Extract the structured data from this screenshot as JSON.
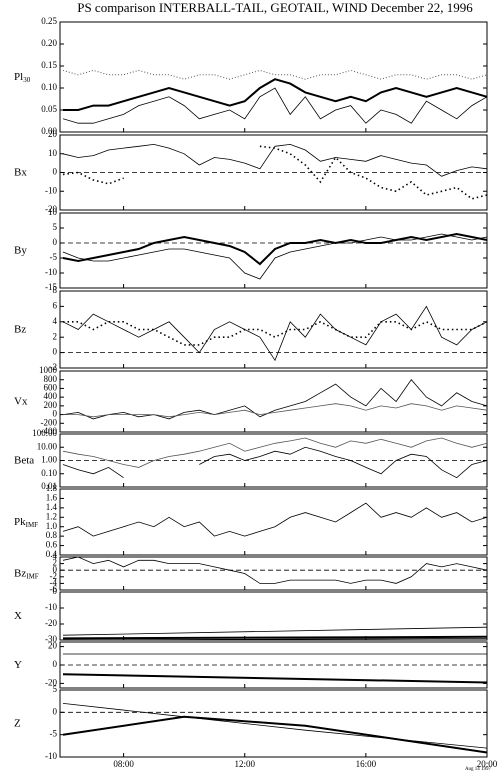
{
  "chart_data": [
    {
      "type": "line",
      "title": "PS comparison INTERBALL-TAIL, GEOTAIL, WIND December 22, 1996",
      "ylabel": "Pl",
      "ylabel_sub": "30",
      "ylim": [
        0,
        0.25
      ],
      "yticks": [
        {
          "value": 0,
          "label": "0.00"
        },
        0.05,
        {
          "value": 0.1,
          "label": "0.10"
        },
        0.15,
        {
          "value": 0.2,
          "label": "0.20"
        },
        0.25
      ],
      "x": [
        6,
        6.5,
        7,
        7.5,
        8,
        8.5,
        9,
        9.5,
        10,
        10.5,
        11,
        11.5,
        12,
        12.5,
        13,
        13.5,
        14,
        14.5,
        15,
        15.5,
        16,
        16.5,
        17,
        17.5,
        18,
        18.5,
        19,
        19.5,
        20
      ],
      "series": [
        {
          "color": "#555555",
          "style": "dotted",
          "values": [
            0.14,
            0.13,
            0.14,
            0.13,
            0.13,
            0.14,
            0.13,
            0.13,
            0.12,
            0.13,
            0.13,
            0.12,
            0.13,
            0.14,
            0.13,
            0.13,
            0.12,
            0.13,
            0.13,
            0.14,
            0.13,
            0.12,
            0.13,
            0.13,
            0.12,
            0.13,
            0.13,
            0.12,
            0.13
          ]
        },
        {
          "color": "#000000",
          "style": "thick",
          "values": [
            0.05,
            0.05,
            0.06,
            0.06,
            0.07,
            0.08,
            0.09,
            0.1,
            0.09,
            0.08,
            0.07,
            0.06,
            0.07,
            0.1,
            0.12,
            0.11,
            0.09,
            0.08,
            0.07,
            0.08,
            0.07,
            0.09,
            0.1,
            0.09,
            0.08,
            0.09,
            0.1,
            0.09,
            0.08
          ]
        },
        {
          "color": "#000000",
          "style": "solid",
          "values": [
            0.03,
            0.02,
            0.02,
            0.03,
            0.04,
            0.06,
            0.07,
            0.08,
            0.06,
            0.03,
            0.04,
            0.05,
            0.03,
            0.08,
            0.1,
            0.04,
            0.08,
            0.03,
            0.05,
            0.06,
            0.02,
            0.05,
            0.04,
            0.02,
            0.07,
            0.05,
            0.03,
            0.06,
            0.08
          ]
        }
      ]
    },
    {
      "type": "line",
      "ylabel": "Bx",
      "ylim": [
        -20,
        20
      ],
      "yticks": [
        -20,
        -10,
        0,
        10,
        20
      ],
      "reference_line": 0,
      "x": [
        6,
        6.5,
        7,
        7.5,
        8,
        8.5,
        9,
        9.5,
        10,
        10.5,
        11,
        11.5,
        12,
        12.5,
        13,
        13.5,
        14,
        14.5,
        15,
        15.5,
        16,
        16.5,
        17,
        17.5,
        18,
        18.5,
        19,
        19.5,
        20
      ],
      "series": [
        {
          "color": "#000000",
          "style": "solid",
          "values": [
            10,
            8,
            9,
            12,
            13,
            14,
            15,
            13,
            10,
            4,
            8,
            7,
            5,
            2,
            14,
            15,
            12,
            6,
            8,
            7,
            6,
            9,
            7,
            5,
            4,
            -2,
            1,
            3,
            2
          ]
        },
        {
          "color": "#000000",
          "style": "dots",
          "values": [
            -1,
            0,
            -4,
            -6,
            -3,
            null,
            null,
            null,
            null,
            null,
            null,
            null,
            null,
            14,
            13,
            10,
            4,
            -5,
            8,
            0,
            -3,
            -8,
            -10,
            -5,
            -12,
            -10,
            -8,
            -14,
            -12
          ]
        }
      ]
    },
    {
      "type": "line",
      "ylabel": "By",
      "ylim": [
        -15,
        10
      ],
      "yticks": [
        -15,
        -10,
        -5,
        0,
        5,
        10
      ],
      "reference_line": 0,
      "x": [
        6,
        6.5,
        7,
        7.5,
        8,
        8.5,
        9,
        9.5,
        10,
        10.5,
        11,
        11.5,
        12,
        12.5,
        13,
        13.5,
        14,
        14.5,
        15,
        15.5,
        16,
        16.5,
        17,
        17.5,
        18,
        18.5,
        19,
        19.5,
        20
      ],
      "series": [
        {
          "color": "#000000",
          "style": "thick",
          "values": [
            -5,
            -6,
            -5,
            -4,
            -3,
            -2,
            0,
            1,
            2,
            1,
            0,
            -1,
            -3,
            -7,
            -2,
            0,
            0,
            1,
            0,
            1,
            0,
            0,
            1,
            2,
            1,
            2,
            3,
            2,
            1
          ]
        },
        {
          "color": "#000000",
          "style": "solid",
          "values": [
            -3,
            -5,
            -6,
            -6,
            -5,
            -4,
            -3,
            -2,
            -2,
            -3,
            -4,
            -5,
            -10,
            -12,
            -5,
            -3,
            -2,
            -1,
            0,
            0,
            1,
            2,
            1,
            1,
            2,
            3,
            2,
            1,
            2
          ]
        }
      ]
    },
    {
      "type": "line",
      "ylabel": "Bz",
      "ylim": [
        -2,
        8
      ],
      "yticks": [
        -2,
        0,
        2,
        4,
        6,
        8
      ],
      "reference_line": 0,
      "x": [
        6,
        6.5,
        7,
        7.5,
        8,
        8.5,
        9,
        9.5,
        10,
        10.5,
        11,
        11.5,
        12,
        12.5,
        13,
        13.5,
        14,
        14.5,
        15,
        15.5,
        16,
        16.5,
        17,
        17.5,
        18,
        18.5,
        19,
        19.5,
        20
      ],
      "series": [
        {
          "color": "#000000",
          "style": "solid",
          "values": [
            4,
            3,
            5,
            4,
            3,
            2,
            3,
            4,
            2,
            0,
            3,
            4,
            3,
            2,
            -1,
            4,
            2,
            5,
            3,
            2,
            1,
            4,
            5,
            3,
            6,
            2,
            1,
            3,
            4
          ]
        },
        {
          "color": "#000000",
          "style": "dots",
          "values": [
            4,
            4,
            3,
            4,
            4,
            3,
            3,
            2,
            1,
            1,
            2,
            2,
            3,
            3,
            2,
            3,
            3,
            4,
            3,
            2,
            2,
            4,
            4,
            3,
            4,
            3,
            3,
            3,
            4
          ]
        }
      ]
    },
    {
      "type": "line",
      "ylabel": "Vx",
      "ylim": [
        -400,
        1000
      ],
      "yticks": [
        -400,
        -200,
        0,
        200,
        400,
        600,
        800,
        1000
      ],
      "x": [
        6,
        6.5,
        7,
        7.5,
        8,
        8.5,
        9,
        9.5,
        10,
        10.5,
        11,
        11.5,
        12,
        12.5,
        13,
        13.5,
        14,
        14.5,
        15,
        15.5,
        16,
        16.5,
        17,
        17.5,
        18,
        18.5,
        19,
        19.5,
        20
      ],
      "series": [
        {
          "color": "#000000",
          "style": "solid",
          "values": [
            0,
            50,
            -100,
            0,
            50,
            -50,
            0,
            -100,
            50,
            100,
            0,
            100,
            200,
            -50,
            100,
            200,
            300,
            500,
            700,
            400,
            200,
            600,
            300,
            800,
            400,
            200,
            500,
            300,
            200
          ]
        },
        {
          "color": "#555555",
          "style": "solid",
          "values": [
            0,
            0,
            -50,
            0,
            0,
            0,
            0,
            -50,
            0,
            50,
            0,
            50,
            100,
            0,
            50,
            100,
            150,
            200,
            250,
            200,
            100,
            200,
            150,
            250,
            200,
            100,
            200,
            150,
            100
          ]
        }
      ]
    },
    {
      "type": "line",
      "ylabel": "Beta",
      "log_scale": true,
      "ylim": [
        0.01,
        100
      ],
      "reference_line": 1,
      "yticks": [
        {
          "value": 0.01,
          "label": "0.01"
        },
        {
          "value": 0.1,
          "label": "0.10"
        },
        {
          "value": 1,
          "label": "1.00"
        },
        {
          "value": 10,
          "label": "10.00"
        },
        {
          "value": 100,
          "label": "100.00"
        }
      ],
      "x": [
        6,
        6.5,
        7,
        7.5,
        8,
        8.5,
        9,
        9.5,
        10,
        10.5,
        11,
        11.5,
        12,
        12.5,
        13,
        13.5,
        14,
        14.5,
        15,
        15.5,
        16,
        16.5,
        17,
        17.5,
        18,
        18.5,
        19,
        19.5,
        20
      ],
      "series": [
        {
          "color": "#555555",
          "style": "solid",
          "values": [
            5,
            3,
            2,
            1,
            0.5,
            0.3,
            1,
            2,
            3,
            5,
            10,
            20,
            5,
            10,
            20,
            30,
            50,
            20,
            10,
            30,
            20,
            40,
            20,
            10,
            30,
            50,
            20,
            10,
            20
          ]
        },
        {
          "color": "#000000",
          "style": "solid",
          "values": [
            0.5,
            0.2,
            0.1,
            0.3,
            0.05,
            null,
            null,
            null,
            null,
            0.5,
            2,
            3,
            1,
            2,
            5,
            3,
            10,
            5,
            2,
            1,
            0.3,
            0.1,
            1,
            3,
            2,
            0.2,
            0.05,
            0.5,
            1
          ]
        }
      ]
    },
    {
      "type": "line",
      "ylabel": "Pk",
      "ylabel_sub": "IMF",
      "ylim": [
        0.4,
        1.8
      ],
      "yticks": [
        0.4,
        0.6,
        0.8,
        {
          "value": 1,
          "label": "1.0"
        },
        1.2,
        1.4,
        1.6,
        1.8
      ],
      "x": [
        6,
        6.5,
        7,
        7.5,
        8,
        8.5,
        9,
        9.5,
        10,
        10.5,
        11,
        11.5,
        12,
        12.5,
        13,
        13.5,
        14,
        14.5,
        15,
        15.5,
        16,
        16.5,
        17,
        17.5,
        18,
        18.5,
        19,
        19.5,
        20
      ],
      "series": [
        {
          "color": "#000000",
          "style": "solid",
          "values": [
            0.9,
            1.0,
            0.8,
            0.9,
            1.0,
            1.1,
            1.0,
            1.2,
            1.0,
            1.1,
            0.8,
            0.9,
            0.8,
            0.9,
            1.0,
            1.2,
            1.3,
            1.2,
            1.1,
            1.3,
            1.5,
            1.2,
            1.3,
            1.2,
            1.4,
            1.2,
            1.3,
            1.1,
            1.2
          ]
        }
      ]
    },
    {
      "type": "line",
      "ylabel": "Bz",
      "ylabel_sub": "IMF",
      "ylim": [
        -6,
        4
      ],
      "yticks": [
        -6,
        -4,
        -2,
        0,
        2,
        4
      ],
      "reference_line": 0,
      "x": [
        6,
        6.5,
        7,
        7.5,
        8,
        8.5,
        9,
        9.5,
        10,
        10.5,
        11,
        11.5,
        12,
        12.5,
        13,
        13.5,
        14,
        14.5,
        15,
        15.5,
        16,
        16.5,
        17,
        17.5,
        18,
        18.5,
        19,
        19.5,
        20
      ],
      "series": [
        {
          "color": "#000000",
          "style": "solid",
          "values": [
            3,
            4,
            2,
            3,
            1,
            3,
            3,
            2,
            2,
            2,
            1,
            0,
            -1,
            -4,
            -4,
            -3,
            -3,
            -3,
            -3,
            -4,
            -3,
            -3,
            -4,
            -2,
            2,
            1,
            2,
            1,
            0
          ]
        }
      ]
    },
    {
      "type": "line",
      "ylabel": "X",
      "ylim": [
        -30,
        0
      ],
      "yticks": [
        -30,
        -20,
        -10,
        0
      ],
      "x": [
        6,
        20
      ],
      "series": [
        {
          "color": "#000000",
          "style": "solid",
          "values": [
            -27,
            -22
          ]
        },
        {
          "color": "#000000",
          "style": "thick",
          "values": [
            -29,
            -28
          ]
        },
        {
          "color": "#000000",
          "style": "solid",
          "values": [
            -30,
            -29
          ]
        }
      ]
    },
    {
      "type": "line",
      "ylabel": "Y",
      "ylim": [
        -25,
        25
      ],
      "yticks": [
        -20,
        0,
        20
      ],
      "reference_line": 0,
      "x": [
        6,
        20
      ],
      "series": [
        {
          "color": "#000000",
          "style": "solid",
          "values": [
            12,
            12
          ]
        },
        {
          "color": "#000000",
          "style": "thick",
          "values": [
            -10,
            -19
          ]
        }
      ]
    },
    {
      "type": "line",
      "ylabel": "Z",
      "ylim": [
        -10,
        5
      ],
      "yticks": [
        -10,
        -5,
        0,
        5
      ],
      "reference_line": 0,
      "note": "Aug 14 1997",
      "xlim": [
        5.9,
        20
      ],
      "xticks": [
        {
          "value": 8,
          "label": "08:00"
        },
        {
          "value": 12,
          "label": "12:00"
        },
        {
          "value": 16,
          "label": "16:00"
        },
        {
          "value": 20,
          "label": "20:00"
        }
      ],
      "x": [
        6,
        10,
        14,
        20
      ],
      "series": [
        {
          "color": "#000000",
          "style": "solid",
          "values": [
            2,
            -1,
            -4,
            -8
          ]
        },
        {
          "color": "#000000",
          "style": "thick",
          "values": [
            -5,
            -1,
            -3,
            -9
          ]
        }
      ]
    }
  ]
}
